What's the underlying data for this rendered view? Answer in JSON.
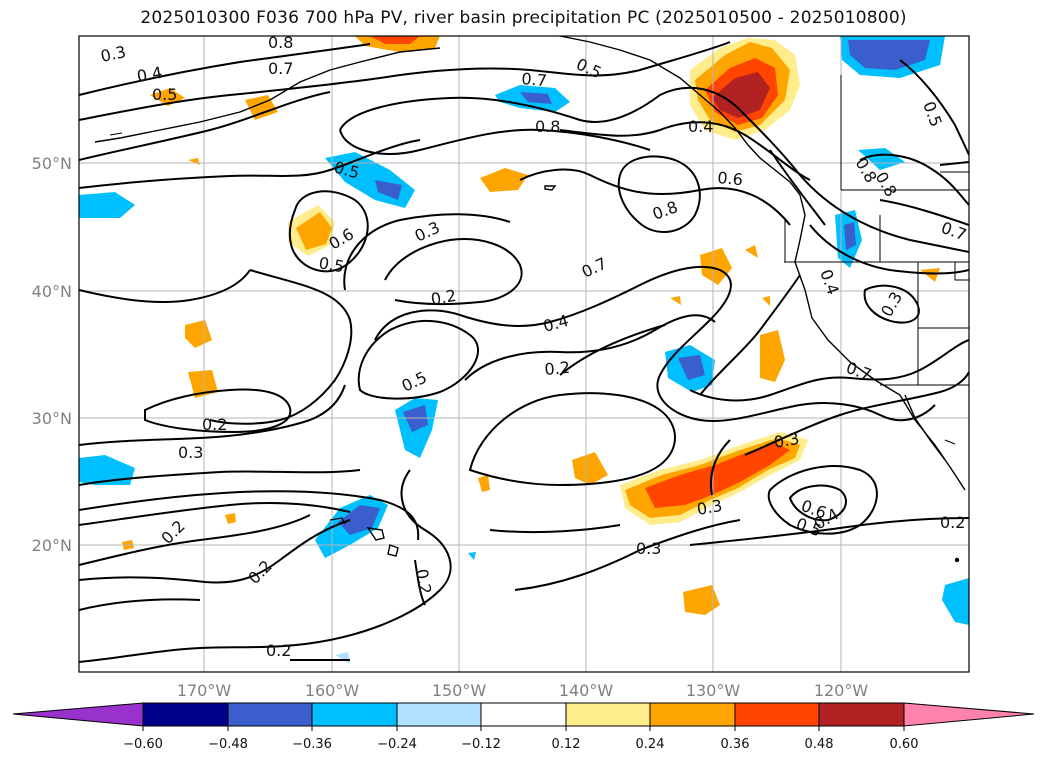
{
  "title": "2025010300 F036 700 hPa PV, river basin precipitation PC (2025010500 - 2025010800)",
  "lon_labels": [
    "170°W",
    "160°W",
    "150°W",
    "140°W",
    "130°W",
    "120°W"
  ],
  "lat_labels": [
    "50°N",
    "40°N",
    "30°N",
    "20°N"
  ],
  "colorbar": {
    "ticks": [
      "−0.60",
      "−0.48",
      "−0.36",
      "−0.24",
      "−0.12",
      "0.12",
      "0.24",
      "0.36",
      "0.48",
      "0.60"
    ],
    "colors": {
      "under": "#9932cc",
      "b1": "#00008b",
      "b2": "#3a5fcd",
      "b3": "#00bfff",
      "b4": "#b0e2ff",
      "zero": "#ffffff",
      "p1": "#ffec8b",
      "p2": "#ffa500",
      "p3": "#ff4500",
      "p4": "#b22222",
      "over": "#ff82ab"
    }
  },
  "contour_labels": {
    "l1": "0.3",
    "l2": "0.8",
    "l3": "0.4",
    "l4": "0.7",
    "l5": "0.5",
    "l6": "0.7",
    "l7": "0.5",
    "l8": "0.8",
    "l9": "0.4",
    "l10": "0.5",
    "l11": "0.6",
    "l12": "0.8",
    "l13": "0.5",
    "l14": "0.6",
    "l15": "0.5",
    "l16": "0.3",
    "l17": "0.2",
    "l18": "0.7",
    "l19": "0.4",
    "l20": "0.2",
    "l21": "0.5",
    "l22": "0.2",
    "l23": "0.3",
    "l24": "0.2",
    "l25": "0.2",
    "l26": "0.2",
    "l27": "0.2",
    "l28": "0.3",
    "l29": "0.3",
    "l30": "0.3",
    "l31": "0.6",
    "l32": "0.5",
    "l33": "0.4",
    "l34": "0.2",
    "l35": "0.4",
    "l36": "0.3",
    "l37": "0.7",
    "l38": "0.8",
    "l39": "0.7",
    "l40": "0.8"
  }
}
